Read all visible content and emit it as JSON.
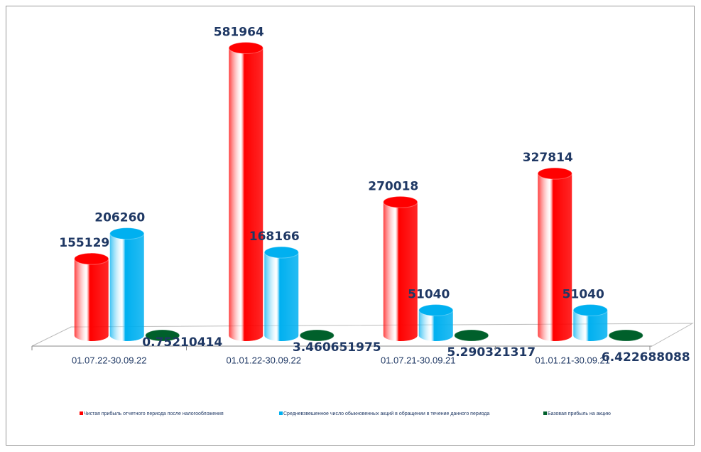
{
  "chart_data": {
    "type": "bar",
    "categories": [
      "01.07.22-30.09.22",
      "01.01.22-30.09.22",
      "01.07.21-30.09.21",
      "01.01.21-30.09.21"
    ],
    "series": [
      {
        "name": "Чистая прибыль отчетного периода после налогообложения",
        "color": "#ff0000",
        "values": [
          155129,
          581964,
          270018,
          327814
        ]
      },
      {
        "name": "Средневзвешенное число обыкновенных акций в обращении в течение данного периода",
        "color": "#00b0f0",
        "values": [
          206260,
          168166,
          51040,
          51040
        ]
      },
      {
        "name": "Базовая прибыль на акцию",
        "color": "#00602b",
        "values": [
          0.75210414,
          3.460651975,
          5.290321317,
          6.422688088
        ]
      }
    ],
    "ylim": [
      0,
      600000
    ],
    "legend": "bottom"
  }
}
